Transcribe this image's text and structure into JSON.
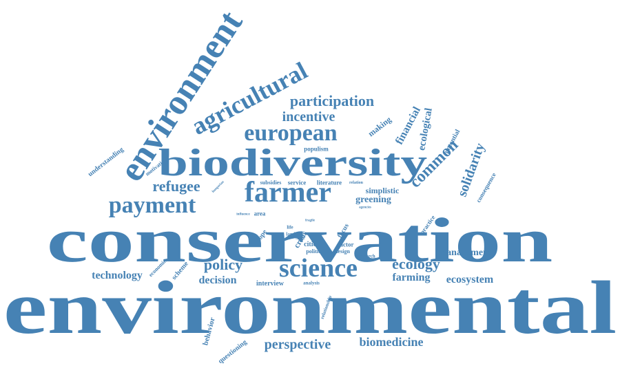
{
  "color": "#4682b4",
  "words": [
    {
      "id": "environmental",
      "text": "environmental"
    },
    {
      "id": "conservation",
      "text": "conservation"
    },
    {
      "id": "biodiversity",
      "text": "biodiversity"
    },
    {
      "id": "environment",
      "text": "environment"
    },
    {
      "id": "agricultural",
      "text": "agricultural"
    },
    {
      "id": "european",
      "text": "european"
    },
    {
      "id": "farmer",
      "text": "farmer"
    },
    {
      "id": "payment",
      "text": "payment"
    },
    {
      "id": "science",
      "text": "science"
    },
    {
      "id": "participation",
      "text": "participation"
    },
    {
      "id": "incentive",
      "text": "incentive"
    },
    {
      "id": "refugee",
      "text": "refugee"
    },
    {
      "id": "ecology",
      "text": "ecology"
    },
    {
      "id": "policy",
      "text": "policy"
    },
    {
      "id": "technology",
      "text": "technology"
    },
    {
      "id": "decision",
      "text": "decision"
    },
    {
      "id": "perspective",
      "text": "perspective"
    },
    {
      "id": "biomedicine",
      "text": "biomedicine"
    },
    {
      "id": "ecosystem",
      "text": "ecosystem"
    },
    {
      "id": "farming",
      "text": "farming"
    },
    {
      "id": "management",
      "text": "management"
    },
    {
      "id": "solidarity",
      "text": "solidarity"
    },
    {
      "id": "common",
      "text": "common"
    },
    {
      "id": "greening",
      "text": "greening"
    },
    {
      "id": "simplistic",
      "text": "simplistic"
    },
    {
      "id": "financial",
      "text": "financial"
    },
    {
      "id": "ecological",
      "text": "ecological"
    },
    {
      "id": "making",
      "text": "making"
    },
    {
      "id": "potential",
      "text": "potential"
    },
    {
      "id": "consequence",
      "text": "consequence"
    },
    {
      "id": "practice",
      "text": "practice"
    },
    {
      "id": "understanding",
      "text": "understanding"
    },
    {
      "id": "motivation",
      "text": "motivation"
    },
    {
      "id": "populism",
      "text": "populism"
    },
    {
      "id": "subsidies",
      "text": "subsidies"
    },
    {
      "id": "service",
      "text": "service"
    },
    {
      "id": "literature",
      "text": "literature"
    },
    {
      "id": "relation",
      "text": "relation"
    },
    {
      "id": "agencies",
      "text": "agencies"
    },
    {
      "id": "area",
      "text": "area"
    },
    {
      "id": "influence",
      "text": "influence"
    },
    {
      "id": "fragile",
      "text": "fragile"
    },
    {
      "id": "hope",
      "text": "hope"
    },
    {
      "id": "life",
      "text": "life"
    },
    {
      "id": "land",
      "text": "land"
    },
    {
      "id": "crisis",
      "text": "crisis"
    },
    {
      "id": "state",
      "text": "state"
    },
    {
      "id": "cities",
      "text": "cities"
    },
    {
      "id": "politic",
      "text": "politic"
    },
    {
      "id": "focus",
      "text": "focus"
    },
    {
      "id": "factor",
      "text": "factor"
    },
    {
      "id": "design",
      "text": "design"
    },
    {
      "id": "research",
      "text": "research"
    },
    {
      "id": "economic",
      "text": "economic"
    },
    {
      "id": "scheme",
      "text": "scheme"
    },
    {
      "id": "interview",
      "text": "interview"
    },
    {
      "id": "analysis",
      "text": "analysis"
    },
    {
      "id": "relationship",
      "text": "relationship"
    },
    {
      "id": "behavior",
      "text": "behavior"
    },
    {
      "id": "questioning",
      "text": "questioning"
    },
    {
      "id": "hungarian",
      "text": "hungarian"
    }
  ]
}
